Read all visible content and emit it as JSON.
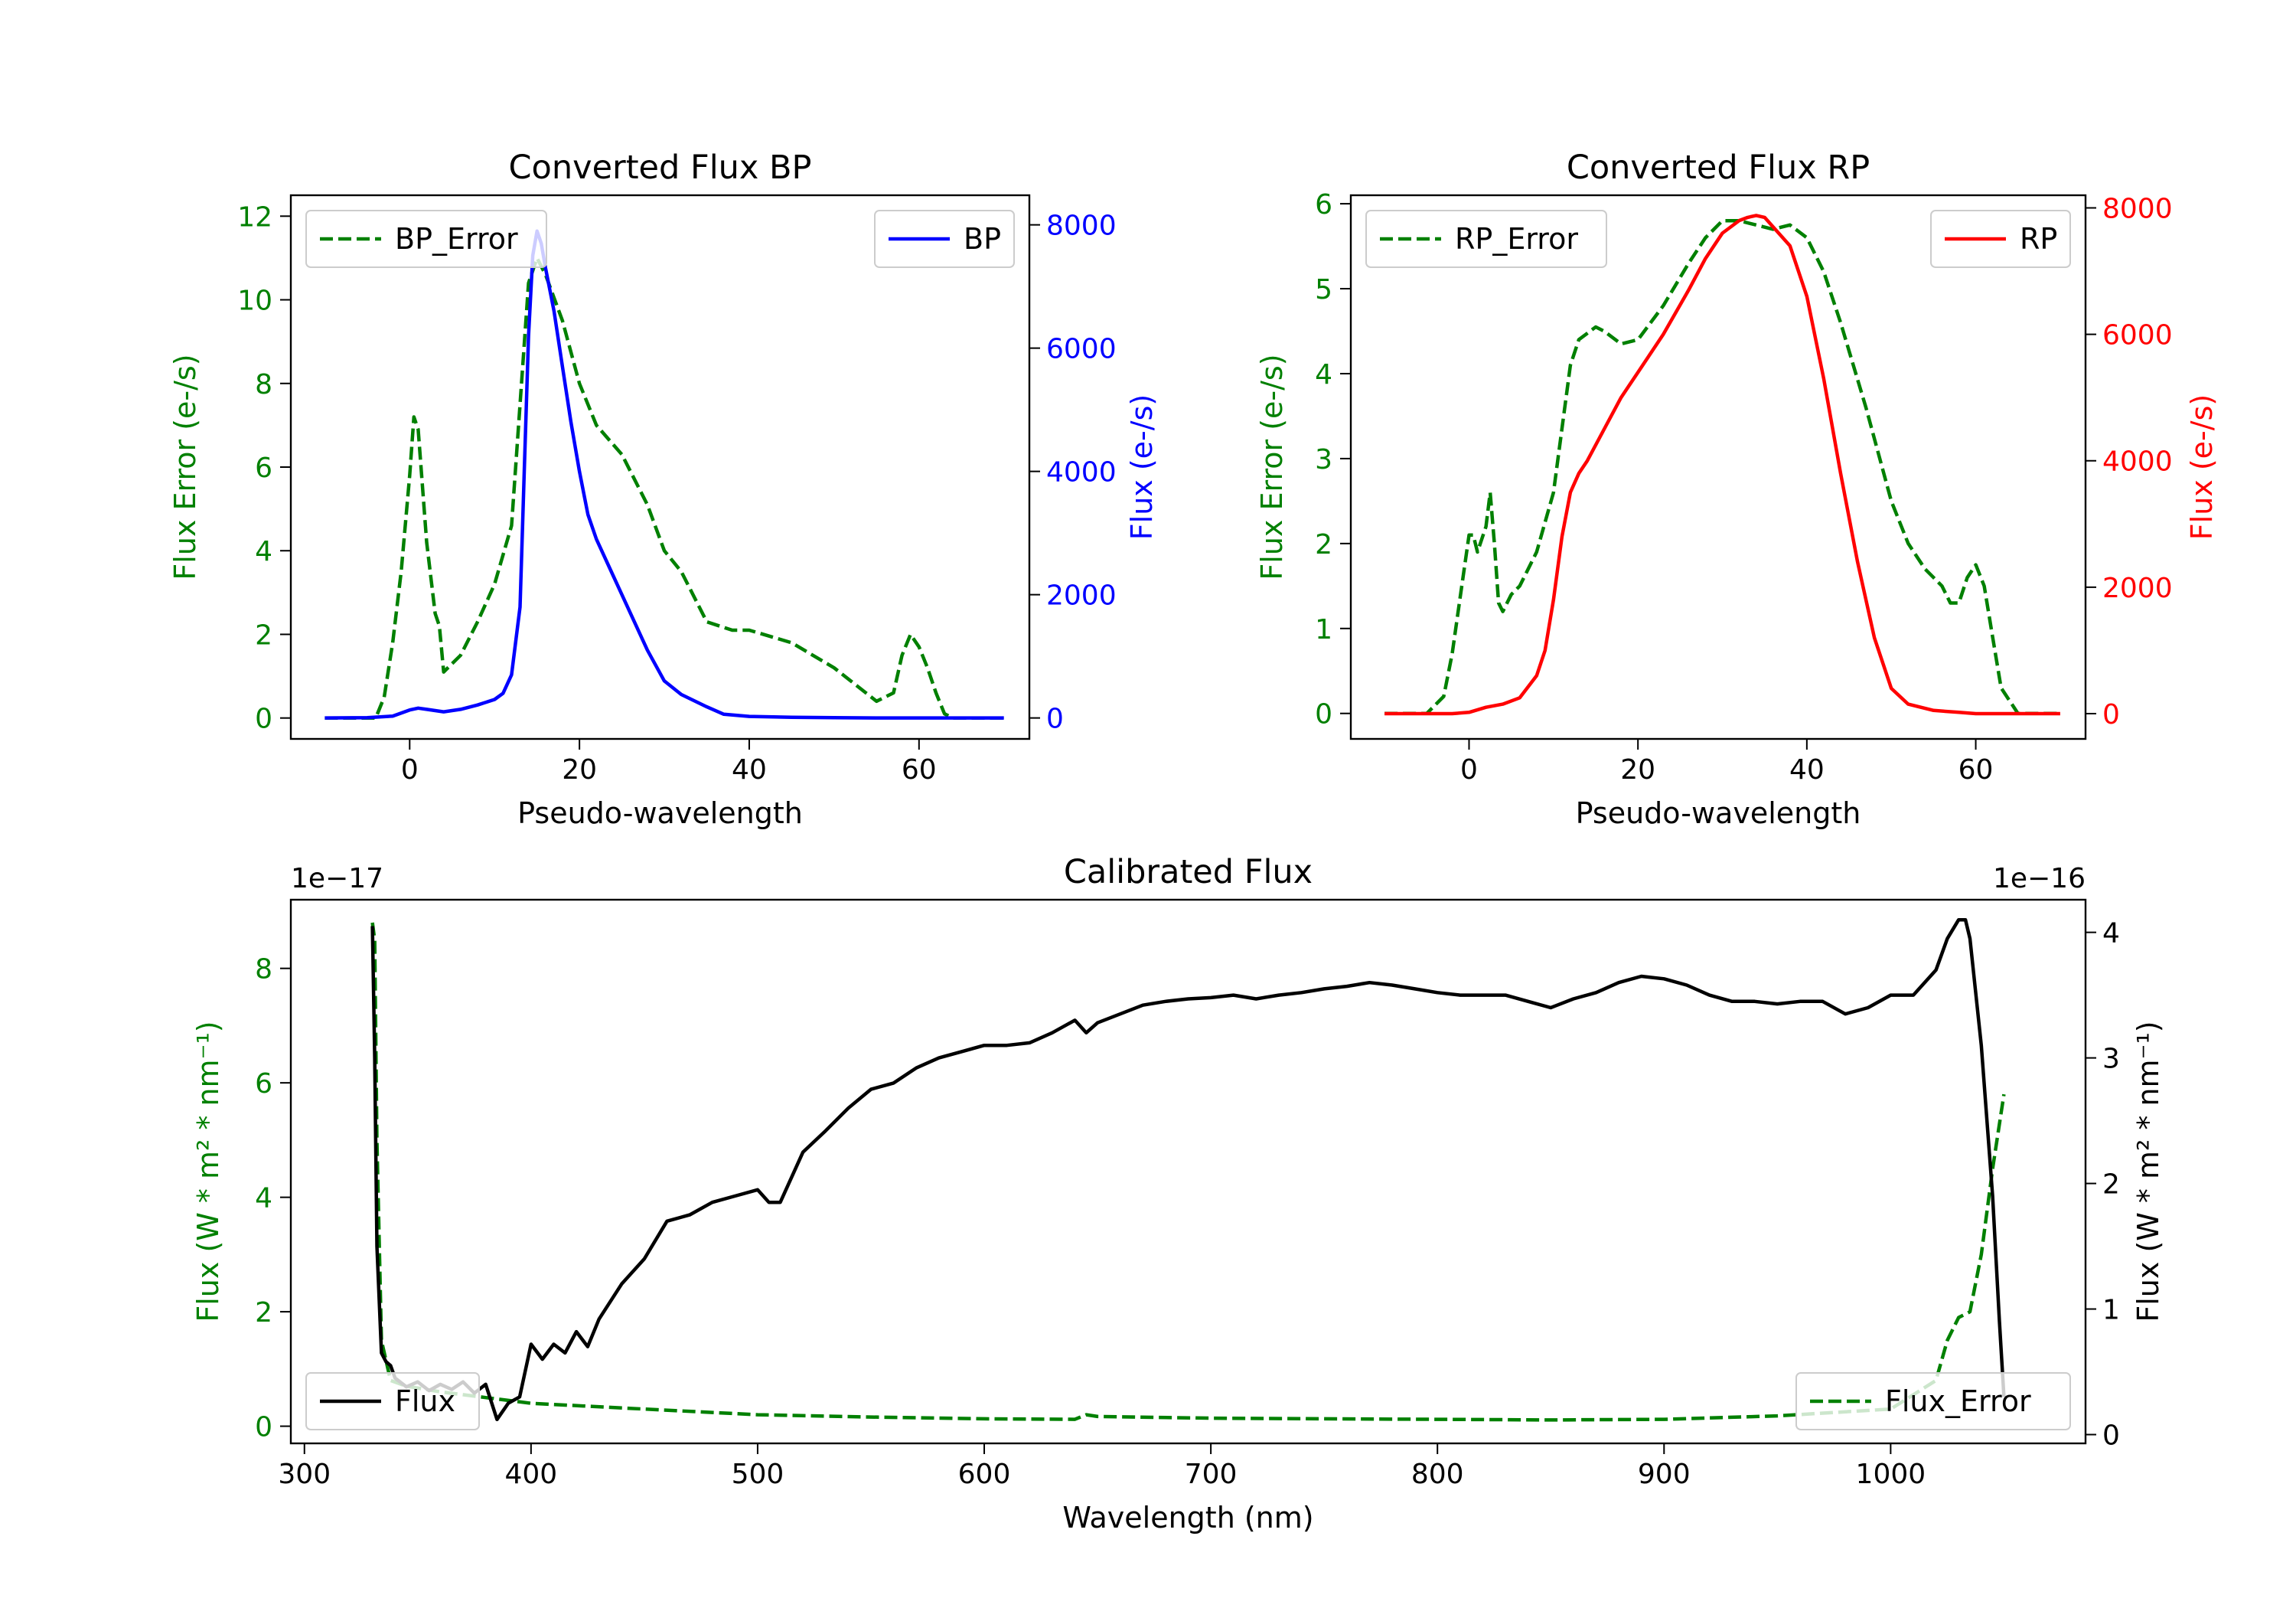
{
  "colors": {
    "green": "#008000",
    "blue": "#0000ff",
    "red": "#ff0000",
    "black": "#000000"
  },
  "chart_data": [
    {
      "id": "bp",
      "type": "line",
      "title": "Converted Flux BP",
      "xlabel": "Pseudo-wavelength",
      "ylabel_left": "Flux Error (e-/s)",
      "ylabel_right": "Flux (e-/s)",
      "xlim": [
        -14,
        73
      ],
      "ylim_left": [
        -0.5,
        12.5
      ],
      "ylim_right": [
        -340,
        8480
      ],
      "xticks": [
        "0",
        "20",
        "40",
        "60"
      ],
      "yticks_left": [
        "0",
        "2",
        "4",
        "6",
        "8",
        "10",
        "12"
      ],
      "yticks_right": [
        "0",
        "2000",
        "4000",
        "6000",
        "8000"
      ],
      "legend_left": "BP_Error",
      "legend_right": "BP",
      "series": [
        {
          "name": "BP_Error",
          "axis": "left",
          "style": "dashed",
          "color": "#008000",
          "x": [
            -10,
            -4,
            -3,
            -2,
            -1,
            0,
            0.5,
            1,
            2,
            3,
            3.5,
            4,
            5,
            6,
            8,
            10,
            12,
            13,
            14,
            15,
            16,
            18,
            20,
            22,
            25,
            28,
            30,
            32,
            35,
            38,
            40,
            45,
            50,
            55,
            57,
            58,
            59,
            60,
            61,
            62,
            63,
            64,
            66,
            70
          ],
          "values": [
            0,
            0,
            0.5,
            1.8,
            3.5,
            5.8,
            7.2,
            6.9,
            4.2,
            2.5,
            2.2,
            1.1,
            1.3,
            1.5,
            2.3,
            3.2,
            4.6,
            7.5,
            10.4,
            11.0,
            10.6,
            9.5,
            8.0,
            7.0,
            6.3,
            5.1,
            4.0,
            3.5,
            2.3,
            2.1,
            2.1,
            1.8,
            1.2,
            0.4,
            0.6,
            1.5,
            2.0,
            1.7,
            1.2,
            0.6,
            0.1,
            0,
            0,
            0
          ]
        },
        {
          "name": "BP",
          "axis": "right",
          "style": "solid",
          "color": "#0000ff",
          "x": [
            -10,
            -5,
            -2,
            0,
            1,
            2,
            4,
            6,
            8,
            10,
            11,
            12,
            13,
            13.5,
            14,
            14.5,
            15,
            15.5,
            16,
            17,
            18,
            19,
            20,
            21,
            22,
            24,
            26,
            28,
            30,
            32,
            35,
            37,
            40,
            45,
            50,
            55,
            58,
            60,
            65,
            70
          ],
          "values": [
            0,
            5,
            30,
            130,
            160,
            140,
            100,
            140,
            210,
            300,
            400,
            700,
            1800,
            4000,
            6200,
            7500,
            7900,
            7700,
            7300,
            6600,
            5700,
            4800,
            4000,
            3300,
            2900,
            2300,
            1700,
            1100,
            600,
            380,
            180,
            60,
            25,
            10,
            5,
            0,
            0,
            0,
            0,
            0
          ]
        }
      ]
    },
    {
      "id": "rp",
      "type": "line",
      "title": "Converted Flux RP",
      "xlabel": "Pseudo-wavelength",
      "ylabel_left": "Flux Error (e-/s)",
      "ylabel_right": "Flux (e-/s)",
      "xlim": [
        -14,
        73
      ],
      "ylim_left": [
        -0.3,
        6.1
      ],
      "ylim_right": [
        -400,
        8200
      ],
      "xticks": [
        "0",
        "20",
        "40",
        "60"
      ],
      "yticks_left": [
        "0",
        "1",
        "2",
        "3",
        "4",
        "5",
        "6"
      ],
      "yticks_right": [
        "0",
        "2000",
        "4000",
        "6000",
        "8000"
      ],
      "legend_left": "RP_Error",
      "legend_right": "RP",
      "series": [
        {
          "name": "RP_Error",
          "axis": "left",
          "style": "dashed",
          "color": "#008000",
          "x": [
            -10,
            -5,
            -3,
            -2,
            -1,
            0,
            0.5,
            1,
            2,
            2.5,
            3,
            3.5,
            4,
            5,
            6,
            8,
            10,
            12,
            13,
            15,
            16,
            18,
            20,
            23,
            26,
            28,
            30,
            32,
            34,
            36,
            38,
            40,
            42,
            44,
            47,
            50,
            52,
            54,
            56,
            57,
            58,
            59,
            60,
            61,
            62,
            63,
            65,
            70
          ],
          "values": [
            0,
            0,
            0.2,
            0.7,
            1.4,
            2.1,
            2.1,
            1.9,
            2.2,
            2.6,
            2.0,
            1.3,
            1.2,
            1.4,
            1.5,
            1.9,
            2.6,
            4.1,
            4.4,
            4.55,
            4.5,
            4.35,
            4.4,
            4.8,
            5.3,
            5.6,
            5.8,
            5.8,
            5.75,
            5.7,
            5.75,
            5.6,
            5.2,
            4.6,
            3.6,
            2.5,
            2.0,
            1.7,
            1.5,
            1.3,
            1.3,
            1.6,
            1.75,
            1.5,
            0.9,
            0.3,
            0,
            0
          ]
        },
        {
          "name": "RP",
          "axis": "right",
          "style": "solid",
          "color": "#ff0000",
          "x": [
            -10,
            -5,
            -2,
            0,
            2,
            4,
            6,
            8,
            9,
            10,
            11,
            12,
            13,
            14,
            16,
            18,
            20,
            23,
            26,
            28,
            30,
            32,
            33,
            34,
            35,
            36,
            38,
            40,
            42,
            44,
            46,
            48,
            50,
            52,
            55,
            58,
            60,
            65,
            70
          ],
          "values": [
            0,
            0,
            0,
            20,
            100,
            150,
            250,
            600,
            1000,
            1800,
            2800,
            3500,
            3800,
            4000,
            4500,
            5000,
            5400,
            6000,
            6700,
            7200,
            7600,
            7800,
            7850,
            7880,
            7850,
            7700,
            7400,
            6600,
            5300,
            3800,
            2400,
            1200,
            400,
            150,
            50,
            20,
            0,
            0,
            0
          ]
        }
      ]
    },
    {
      "id": "cal",
      "type": "line",
      "title": "Calibrated Flux",
      "xlabel": "Wavelength (nm)",
      "ylabel_left": "Flux (W * m² * nm⁻¹)",
      "ylabel_right": "Flux (W * m² * nm⁻¹)",
      "offset_left": "1e−17",
      "offset_right": "1e−16",
      "xlim": [
        294,
        1086
      ],
      "ylim_left": [
        -0.3,
        9.2
      ],
      "ylim_right": [
        -0.07,
        4.26
      ],
      "xticks": [
        "300",
        "400",
        "500",
        "600",
        "700",
        "800",
        "900",
        "1000"
      ],
      "yticks_left": [
        "0",
        "2",
        "4",
        "6",
        "8"
      ],
      "yticks_right": [
        "0",
        "1",
        "2",
        "3",
        "4"
      ],
      "legend_left": "Flux",
      "legend_right": "Flux_Error",
      "series": [
        {
          "name": "Flux_Error",
          "axis": "left",
          "style": "dashed",
          "color": "#008000",
          "x": [
            330,
            331,
            332,
            334,
            338,
            345,
            360,
            380,
            390,
            400,
            450,
            500,
            550,
            600,
            640,
            645,
            650,
            700,
            750,
            800,
            850,
            900,
            950,
            1000,
            1020,
            1025,
            1030,
            1035,
            1040,
            1045,
            1050
          ],
          "values": [
            8.8,
            8.5,
            5.0,
            1.5,
            0.8,
            0.7,
            0.6,
            0.5,
            0.45,
            0.4,
            0.3,
            0.2,
            0.16,
            0.13,
            0.12,
            0.2,
            0.17,
            0.14,
            0.13,
            0.12,
            0.11,
            0.12,
            0.18,
            0.3,
            0.8,
            1.5,
            1.9,
            2.0,
            3.0,
            4.5,
            5.8
          ]
        },
        {
          "name": "Flux",
          "axis": "right",
          "style": "solid",
          "color": "#000000",
          "x": [
            330,
            331,
            332,
            334,
            336,
            338,
            340,
            345,
            350,
            355,
            360,
            365,
            370,
            375,
            380,
            385,
            390,
            395,
            400,
            405,
            410,
            415,
            420,
            425,
            430,
            440,
            450,
            460,
            470,
            480,
            490,
            500,
            505,
            510,
            520,
            530,
            540,
            550,
            560,
            570,
            580,
            590,
            600,
            610,
            620,
            630,
            640,
            645,
            650,
            660,
            670,
            680,
            690,
            700,
            710,
            720,
            730,
            740,
            750,
            760,
            770,
            780,
            790,
            800,
            810,
            820,
            830,
            840,
            850,
            860,
            870,
            880,
            890,
            900,
            910,
            920,
            930,
            940,
            950,
            960,
            970,
            980,
            990,
            1000,
            1010,
            1020,
            1025,
            1030,
            1033,
            1035,
            1040,
            1045,
            1048,
            1050
          ],
          "values": [
            4.05,
            3.0,
            1.5,
            0.65,
            0.58,
            0.55,
            0.45,
            0.38,
            0.42,
            0.35,
            0.4,
            0.36,
            0.42,
            0.33,
            0.4,
            0.12,
            0.25,
            0.3,
            0.72,
            0.6,
            0.72,
            0.65,
            0.82,
            0.7,
            0.92,
            1.2,
            1.4,
            1.7,
            1.75,
            1.85,
            1.9,
            1.95,
            1.85,
            1.85,
            2.25,
            2.42,
            2.6,
            2.75,
            2.8,
            2.92,
            3.0,
            3.05,
            3.1,
            3.1,
            3.12,
            3.2,
            3.3,
            3.2,
            3.28,
            3.35,
            3.42,
            3.45,
            3.47,
            3.48,
            3.5,
            3.47,
            3.5,
            3.52,
            3.55,
            3.57,
            3.6,
            3.58,
            3.55,
            3.52,
            3.5,
            3.5,
            3.5,
            3.45,
            3.4,
            3.47,
            3.52,
            3.6,
            3.65,
            3.63,
            3.58,
            3.5,
            3.45,
            3.45,
            3.43,
            3.45,
            3.45,
            3.35,
            3.4,
            3.5,
            3.5,
            3.7,
            3.95,
            4.1,
            4.1,
            3.95,
            3.1,
            1.9,
            0.9,
            0.3
          ]
        }
      ]
    }
  ]
}
